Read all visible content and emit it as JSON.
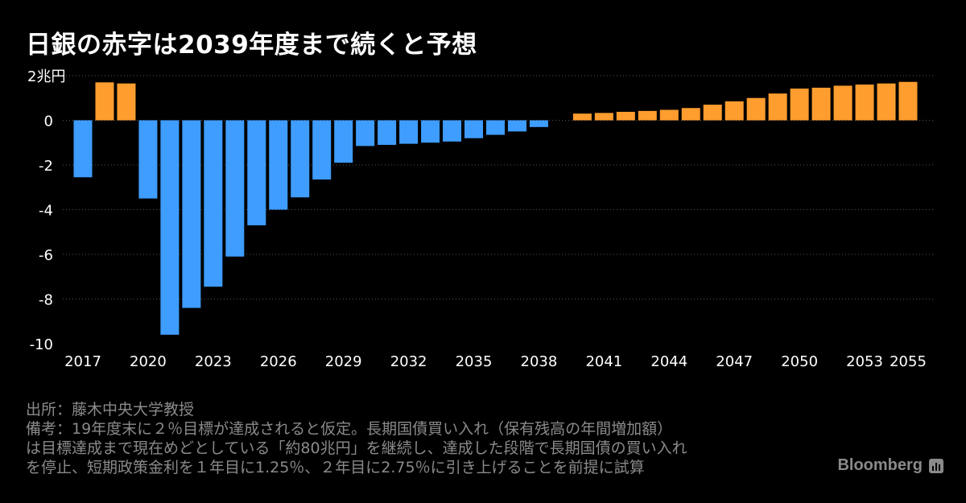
{
  "chart_data": {
    "type": "bar",
    "title": "日銀の赤字は2039年度まで続くと予想",
    "ylabel": "",
    "y_unit_label": "2兆円",
    "ylim": [
      -10,
      2
    ],
    "yticks": [
      {
        "value": 2,
        "label": "2兆円"
      },
      {
        "value": 0,
        "label": "0"
      },
      {
        "value": -2,
        "label": "-2"
      },
      {
        "value": -4,
        "label": "-4"
      },
      {
        "value": -6,
        "label": "-6"
      },
      {
        "value": -8,
        "label": "-8"
      },
      {
        "value": -10,
        "label": "-10"
      }
    ],
    "x_tick_labels": [
      "2017",
      "2020",
      "2023",
      "2026",
      "2029",
      "2032",
      "2035",
      "2038",
      "2041",
      "2044",
      "2047",
      "2050",
      "2053",
      "2055"
    ],
    "categories": [
      "2017",
      "2018",
      "2019",
      "2020",
      "2021",
      "2022",
      "2023",
      "2024",
      "2025",
      "2026",
      "2027",
      "2028",
      "2029",
      "2030",
      "2031",
      "2032",
      "2033",
      "2034",
      "2035",
      "2036",
      "2037",
      "2038",
      "2039",
      "2040",
      "2041",
      "2042",
      "2043",
      "2044",
      "2045",
      "2046",
      "2047",
      "2048",
      "2049",
      "2050",
      "2051",
      "2052",
      "2053",
      "2054",
      "2055"
    ],
    "values": [
      -2.55,
      1.7,
      1.65,
      -3.5,
      -9.6,
      -8.4,
      -7.45,
      -6.1,
      -4.7,
      -4.0,
      -3.45,
      -2.65,
      -1.9,
      -1.15,
      -1.1,
      -1.05,
      -1.0,
      -0.95,
      -0.8,
      -0.65,
      -0.5,
      -0.3,
      0.0,
      0.3,
      0.33,
      0.38,
      0.42,
      0.47,
      0.55,
      0.7,
      0.85,
      1.0,
      1.2,
      1.42,
      1.46,
      1.55,
      1.6,
      1.65,
      1.72
    ],
    "colors": {
      "negative": "#3e9dff",
      "positive": "#ff9d2e",
      "grid": "#555555",
      "axis_text": "#ffffff"
    },
    "grid": true
  },
  "footnote": {
    "source": "出所：藤木中央大学教授",
    "note_line1": "備考：19年度末に２％目標が達成されると仮定。長期国債買い入れ（保有残高の年間増加額）",
    "note_line2": "は目標達成まで現在めどとしている「約80兆円」を継続し、達成した段階で長期国債の買い入れ",
    "note_line3": "を停止、短期政策金利を１年目に1.25％、２年目に2.75％に引き上げることを前提に試算"
  },
  "brand": {
    "name": "Bloomberg",
    "logo_icon": "bloomberg-terminal-icon"
  }
}
